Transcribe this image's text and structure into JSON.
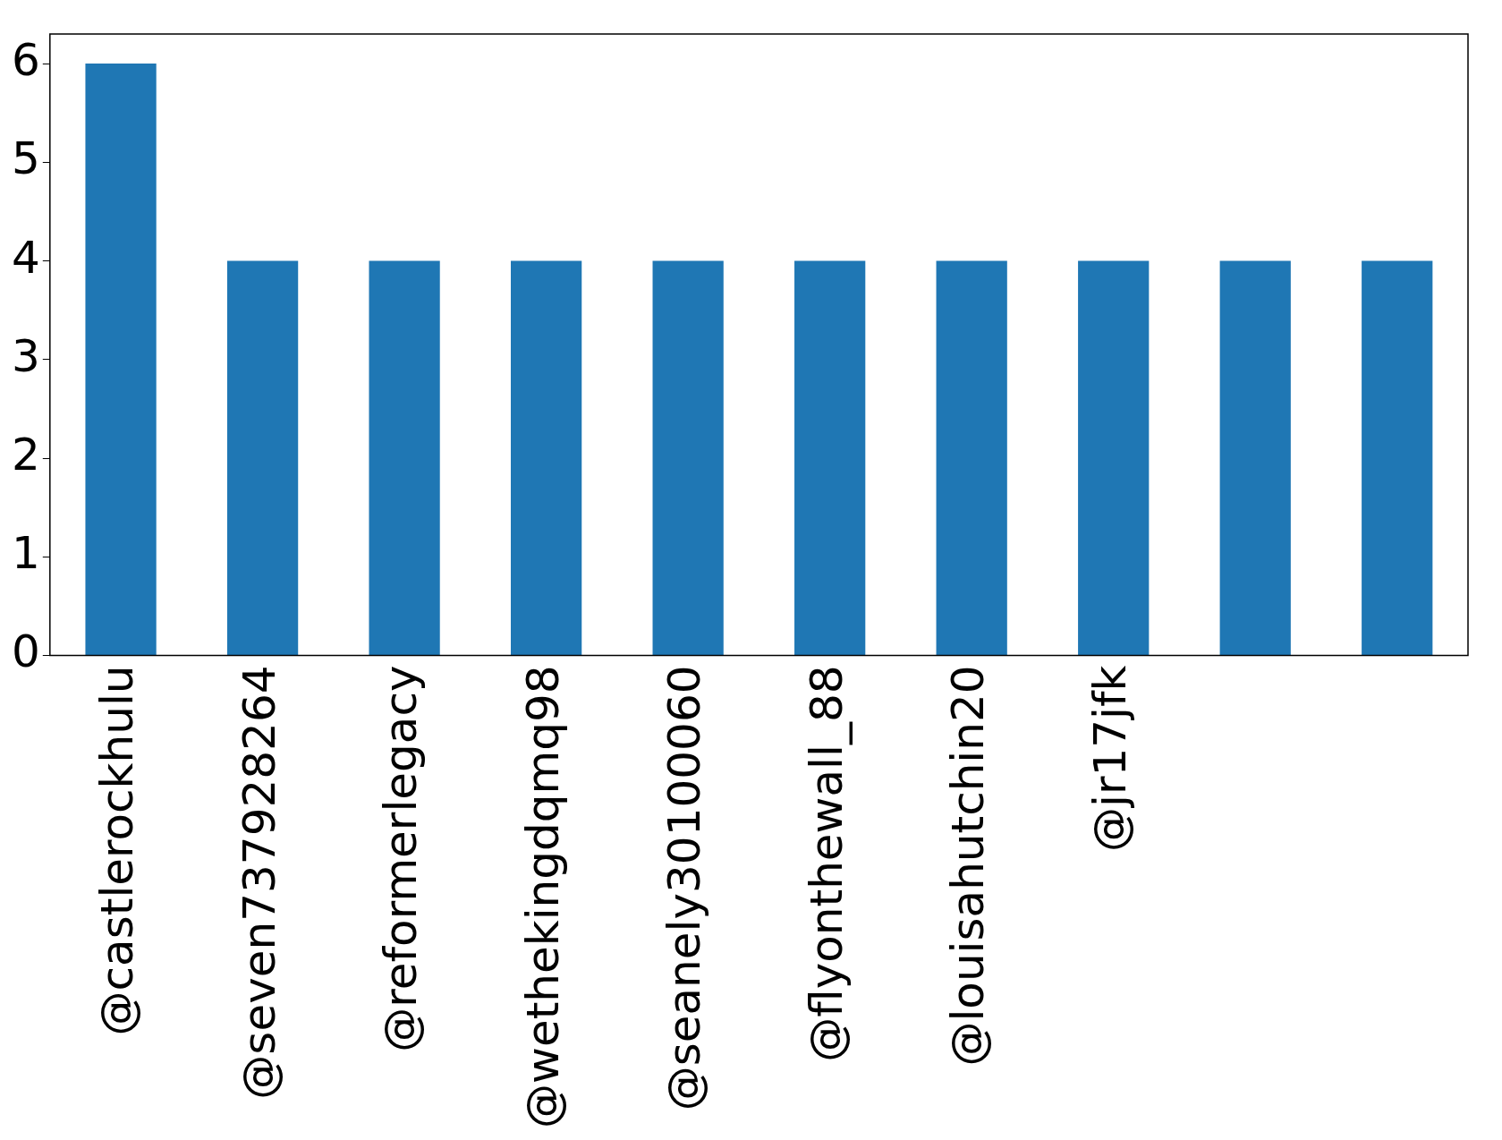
{
  "chart_data": {
    "type": "bar",
    "categories": [
      "@castlerockhulu",
      "@seven737928264",
      "@reformerlegacy",
      "@wethekingdqmq98",
      "@seanely30100060",
      "@flyonthewall_88",
      "@louisahutchin20",
      "@jr17jfk",
      null,
      null
    ],
    "values": [
      6,
      4,
      4,
      4,
      4,
      4,
      4,
      4,
      4,
      4
    ],
    "color": "#1f77b4",
    "ylim": [
      0,
      6.3
    ],
    "yticks": [
      0,
      1,
      2,
      3,
      4,
      5,
      6
    ],
    "grid": false,
    "legend": false
  }
}
